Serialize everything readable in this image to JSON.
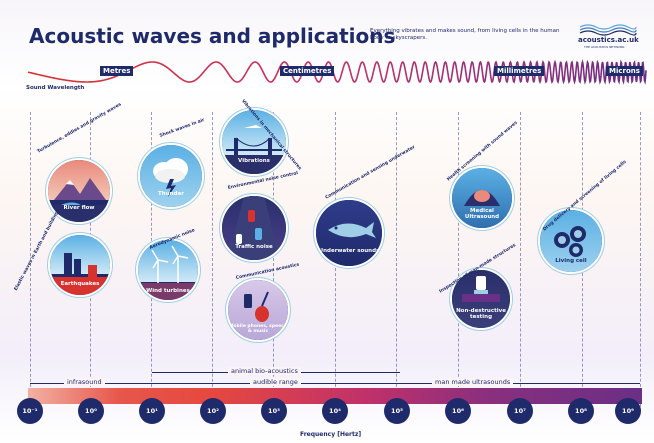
{
  "header": {
    "title": "Acoustic waves and applications",
    "subtitle": "Everything vibrates and makes sound, from living cells in the human body to skyscrapers.",
    "logo_text": "acoustics.ac.uk",
    "logo_sub": "THE ACOUSTICS NETWORK"
  },
  "wavelength": {
    "label": "Sound Wavelength",
    "scales": [
      "Metres",
      "Centimetres",
      "Millimetres",
      "Microns"
    ]
  },
  "applications": [
    {
      "label": "River flow",
      "caption": "Turbulence, eddies and gravity waves"
    },
    {
      "label": "Thunder",
      "caption": "Shock waves in air"
    },
    {
      "label": "Vibrations",
      "caption": "Vibrations in mechanical structures"
    },
    {
      "label": "Traffic noise",
      "caption": "Environmental noise control"
    },
    {
      "label": "Underwater sounds",
      "caption": "Communication and sensing underwater"
    },
    {
      "label": "Medical Ultrasound",
      "caption": "Health screening with sound waves"
    },
    {
      "label": "Living cell",
      "caption": "Drug delivery and screening of living cells"
    },
    {
      "label": "Earthquakes",
      "caption": "Elastic waves in Earth and buildings"
    },
    {
      "label": "Wind turbines",
      "caption": "Aerodynamic noise"
    },
    {
      "label": "Mobile phones, speech & music",
      "caption": "Communication acoustics"
    },
    {
      "label": "Non-destructive testing",
      "caption": "Inspection of man-made structures"
    }
  ],
  "ranges": {
    "bio": "animal bio-acoustics",
    "infra": "infrasound",
    "audible": "audible range",
    "ultra": "man made ultrasounds"
  },
  "frequency": {
    "label": "Frequency [Hertz]",
    "ticks": [
      "10⁻¹",
      "10⁰",
      "10¹",
      "10²",
      "10³",
      "10⁴",
      "10⁵",
      "10⁶",
      "10⁷",
      "10⁸",
      "10⁹"
    ]
  },
  "colors": {
    "navy": "#1f2a6b",
    "wave_red": "#d8322f",
    "wave_purple": "#6a2f86",
    "node_ring": "#9ecfe7"
  }
}
